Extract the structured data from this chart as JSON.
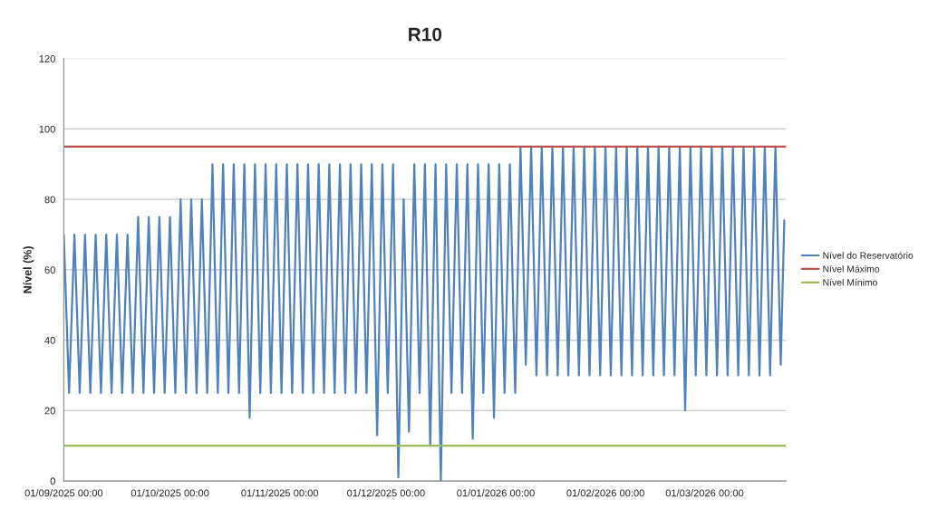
{
  "chart_data": {
    "type": "line",
    "title": "R10",
    "ylabel": "Nível (%)",
    "ylim": [
      0,
      120
    ],
    "yticks": [
      0,
      20,
      40,
      60,
      80,
      100,
      120
    ],
    "xlim": [
      "2025-09-01",
      "2026-03-24"
    ],
    "xticks": [
      {
        "value": "2025-09-01",
        "label": "01/09/2025 00:00"
      },
      {
        "value": "2025-10-01",
        "label": "01/10/2025 00:00"
      },
      {
        "value": "2025-11-01",
        "label": "01/11/2025 00:00"
      },
      {
        "value": "2025-12-01",
        "label": "01/12/2025 00:00"
      },
      {
        "value": "2026-01-01",
        "label": "01/01/2026 00:00"
      },
      {
        "value": "2026-02-01",
        "label": "01/02/2026 00:00"
      },
      {
        "value": "2026-03-01",
        "label": "01/03/2026 00:00"
      }
    ],
    "grid": "y",
    "legend": "right",
    "marker": "none",
    "line_style": "solid",
    "series": [
      {
        "name": "Nível do Reservatório",
        "color": "#4f81bd",
        "x": [
          "2025-09-01T00:00",
          "2025-09-02T12:00",
          "2025-09-04T00:00",
          "2025-09-05T12:00",
          "2025-09-07T00:00",
          "2025-09-08T12:00",
          "2025-09-10T00:00",
          "2025-09-11T12:00",
          "2025-09-13T00:00",
          "2025-09-14T12:00",
          "2025-09-16T00:00",
          "2025-09-17T12:00",
          "2025-09-19T00:00",
          "2025-09-20T12:00",
          "2025-09-22T00:00",
          "2025-09-23T12:00",
          "2025-09-25T00:00",
          "2025-09-26T12:00",
          "2025-09-28T00:00",
          "2025-09-29T12:00",
          "2025-10-01T00:00",
          "2025-10-02T12:00",
          "2025-10-04T00:00",
          "2025-10-05T12:00",
          "2025-10-07T00:00",
          "2025-10-08T12:00",
          "2025-10-10T00:00",
          "2025-10-11T12:00",
          "2025-10-13T00:00",
          "2025-10-14T12:00",
          "2025-10-16T00:00",
          "2025-10-17T12:00",
          "2025-10-19T00:00",
          "2025-10-20T12:00",
          "2025-10-22T00:00",
          "2025-10-23T12:00",
          "2025-10-25T00:00",
          "2025-10-26T12:00",
          "2025-10-28T00:00",
          "2025-10-29T12:00",
          "2025-10-31T00:00",
          "2025-11-01T12:00",
          "2025-11-03T00:00",
          "2025-11-04T12:00",
          "2025-11-06T00:00",
          "2025-11-07T12:00",
          "2025-11-09T00:00",
          "2025-11-10T12:00",
          "2025-11-12T00:00",
          "2025-11-13T12:00",
          "2025-11-15T00:00",
          "2025-11-16T12:00",
          "2025-11-18T00:00",
          "2025-11-19T12:00",
          "2025-11-21T00:00",
          "2025-11-22T12:00",
          "2025-11-24T00:00",
          "2025-11-25T12:00",
          "2025-11-27T00:00",
          "2025-11-28T12:00",
          "2025-11-30T00:00",
          "2025-12-01T12:00",
          "2025-12-03T00:00",
          "2025-12-04T12:00",
          "2025-12-06T00:00",
          "2025-12-07T12:00",
          "2025-12-09T00:00",
          "2025-12-10T12:00",
          "2025-12-12T00:00",
          "2025-12-13T12:00",
          "2025-12-15T00:00",
          "2025-12-16T12:00",
          "2025-12-18T00:00",
          "2025-12-19T12:00",
          "2025-12-21T00:00",
          "2025-12-22T12:00",
          "2025-12-24T00:00",
          "2025-12-25T12:00",
          "2025-12-27T00:00",
          "2025-12-28T12:00",
          "2025-12-30T00:00",
          "2025-12-31T12:00",
          "2026-01-02T00:00",
          "2026-01-03T12:00",
          "2026-01-05T00:00",
          "2026-01-06T12:00",
          "2026-01-08T00:00",
          "2026-01-09T12:00",
          "2026-01-11T00:00",
          "2026-01-12T12:00",
          "2026-01-14T00:00",
          "2026-01-15T12:00",
          "2026-01-17T00:00",
          "2026-01-18T12:00",
          "2026-01-20T00:00",
          "2026-01-21T12:00",
          "2026-01-23T00:00",
          "2026-01-24T12:00",
          "2026-01-26T00:00",
          "2026-01-27T12:00",
          "2026-01-29T00:00",
          "2026-01-30T12:00",
          "2026-02-01T00:00",
          "2026-02-02T12:00",
          "2026-02-04T00:00",
          "2026-02-05T12:00",
          "2026-02-07T00:00",
          "2026-02-08T12:00",
          "2026-02-10T00:00",
          "2026-02-11T12:00",
          "2026-02-13T00:00",
          "2026-02-14T12:00",
          "2026-02-16T00:00",
          "2026-02-17T12:00",
          "2026-02-19T00:00",
          "2026-02-20T12:00",
          "2026-02-22T00:00",
          "2026-02-23T12:00",
          "2026-02-25T00:00",
          "2026-02-26T12:00",
          "2026-02-28T00:00",
          "2026-03-01T12:00",
          "2026-03-03T00:00",
          "2026-03-04T12:00",
          "2026-03-06T00:00",
          "2026-03-07T12:00",
          "2026-03-09T00:00",
          "2026-03-10T12:00",
          "2026-03-12T00:00",
          "2026-03-13T12:00",
          "2026-03-15T00:00",
          "2026-03-16T12:00",
          "2026-03-18T00:00",
          "2026-03-19T12:00",
          "2026-03-21T00:00",
          "2026-03-22T12:00",
          "2026-03-23T12:00"
        ],
        "values": [
          70,
          25,
          70,
          25,
          70,
          25,
          70,
          25,
          70,
          25,
          70,
          25,
          70,
          25,
          75,
          25,
          75,
          25,
          75,
          25,
          75,
          25,
          80,
          25,
          80,
          25,
          80,
          25,
          90,
          25,
          90,
          25,
          90,
          25,
          90,
          18,
          90,
          25,
          90,
          25,
          90,
          25,
          90,
          25,
          90,
          25,
          90,
          25,
          90,
          25,
          90,
          25,
          90,
          25,
          90,
          25,
          90,
          25,
          90,
          13,
          90,
          25,
          90,
          1,
          80,
          14,
          90,
          25,
          90,
          10,
          90,
          0,
          90,
          25,
          90,
          25,
          90,
          12,
          90,
          25,
          90,
          18,
          90,
          25,
          90,
          25,
          95,
          33,
          95,
          30,
          95,
          30,
          95,
          30,
          95,
          30,
          95,
          30,
          95,
          30,
          95,
          30,
          95,
          30,
          95,
          30,
          95,
          30,
          95,
          30,
          95,
          30,
          95,
          30,
          95,
          30,
          95,
          20,
          95,
          30,
          95,
          30,
          95,
          30,
          95,
          30,
          95,
          30,
          95,
          30,
          95,
          30,
          95,
          30,
          95,
          33,
          74
        ]
      },
      {
        "name": "Nível Máximo",
        "color": "#c0504d",
        "x": [
          "2025-09-01T00:00",
          "2026-03-24T00:00"
        ],
        "values": [
          95,
          95
        ]
      },
      {
        "name": "Nível Mínimo",
        "color": "#9bbb59",
        "x": [
          "2025-09-01T00:00",
          "2026-03-24T00:00"
        ],
        "values": [
          10,
          10
        ]
      }
    ]
  }
}
